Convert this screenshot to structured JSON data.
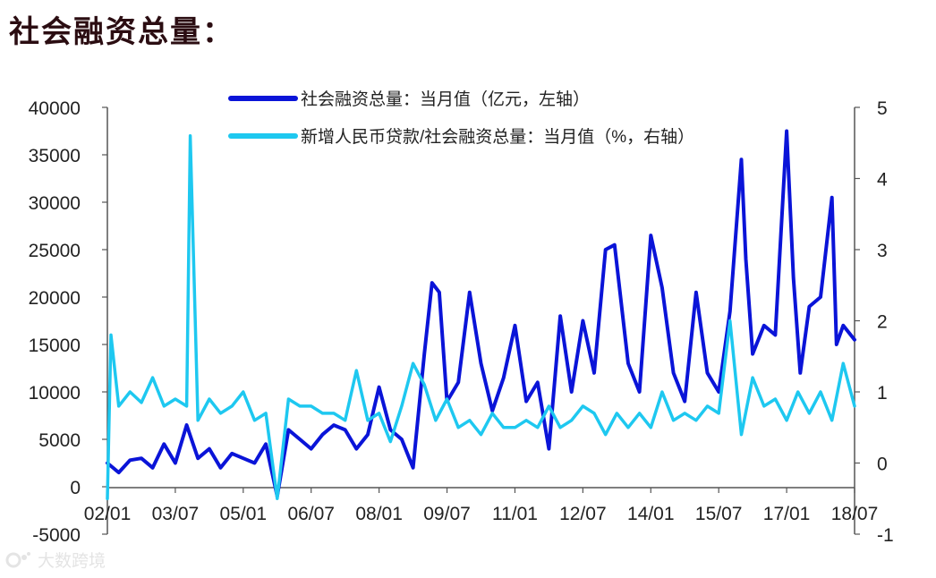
{
  "heading": "社会融资总量：",
  "watermark": "大数跨境",
  "colors": {
    "primary": "#0a14d8",
    "secondary": "#1ec8f0",
    "text": "#222222"
  },
  "chart_data": {
    "type": "line",
    "x_ticks": [
      "02/01",
      "03/07",
      "05/01",
      "06/07",
      "08/01",
      "09/07",
      "11/01",
      "12/07",
      "14/01",
      "15/07",
      "17/01",
      "18/07"
    ],
    "x_range": [
      2002.0,
      2018.5
    ],
    "y_left": {
      "range": [
        -5000,
        40000
      ],
      "ticks": [
        "-5000",
        "0",
        "5000",
        "10000",
        "15000",
        "20000",
        "25000",
        "30000",
        "35000",
        "40000"
      ]
    },
    "y_right": {
      "range": [
        -1,
        5
      ],
      "ticks": [
        "-1",
        "0",
        "1",
        "2",
        "3",
        "4",
        "5"
      ]
    },
    "legend_position": "top",
    "series": [
      {
        "name": "社会融资总量：当月值（亿元，左轴）",
        "axis": "left",
        "color": "#0a14d8",
        "x": [
          2002.0,
          2002.25,
          2002.5,
          2002.75,
          2003.0,
          2003.25,
          2003.5,
          2003.75,
          2004.0,
          2004.25,
          2004.5,
          2004.75,
          2005.0,
          2005.25,
          2005.5,
          2005.75,
          2006.0,
          2006.25,
          2006.5,
          2006.75,
          2007.0,
          2007.25,
          2007.5,
          2007.75,
          2008.0,
          2008.25,
          2008.5,
          2008.75,
          2009.0,
          2009.17,
          2009.33,
          2009.5,
          2009.75,
          2010.0,
          2010.25,
          2010.5,
          2010.75,
          2011.0,
          2011.25,
          2011.5,
          2011.75,
          2012.0,
          2012.25,
          2012.5,
          2012.75,
          2013.0,
          2013.2,
          2013.5,
          2013.75,
          2014.0,
          2014.25,
          2014.5,
          2014.75,
          2015.0,
          2015.25,
          2015.5,
          2015.75,
          2016.0,
          2016.1,
          2016.25,
          2016.5,
          2016.75,
          2017.0,
          2017.15,
          2017.3,
          2017.5,
          2017.75,
          2018.0,
          2018.1,
          2018.25,
          2018.5
        ],
        "y": [
          2500,
          1500,
          2800,
          3000,
          2000,
          4500,
          2500,
          6500,
          3000,
          4000,
          2000,
          3500,
          3000,
          2500,
          4500,
          -1000,
          6000,
          5000,
          4000,
          5500,
          6500,
          6000,
          4000,
          5500,
          10500,
          6000,
          5000,
          2000,
          14000,
          21500,
          20500,
          9000,
          11000,
          20500,
          13000,
          8000,
          11500,
          17000,
          9000,
          11000,
          4000,
          18000,
          10000,
          17500,
          12000,
          25000,
          25500,
          13000,
          10000,
          26500,
          21000,
          12000,
          9000,
          20500,
          12000,
          10000,
          18500,
          34500,
          24000,
          14000,
          17000,
          16000,
          37500,
          22000,
          12000,
          19000,
          20000,
          30500,
          15000,
          17000,
          15500
        ]
      },
      {
        "name": "新增人民币贷款/社会融资总量：当月值（%，右轴）",
        "axis": "right",
        "color": "#1ec8f0",
        "x": [
          2002.0,
          2002.08,
          2002.25,
          2002.5,
          2002.75,
          2003.0,
          2003.25,
          2003.5,
          2003.75,
          2003.83,
          2004.0,
          2004.25,
          2004.5,
          2004.75,
          2005.0,
          2005.25,
          2005.5,
          2005.75,
          2006.0,
          2006.25,
          2006.5,
          2006.75,
          2007.0,
          2007.25,
          2007.5,
          2007.75,
          2008.0,
          2008.25,
          2008.5,
          2008.75,
          2009.0,
          2009.25,
          2009.5,
          2009.75,
          2010.0,
          2010.25,
          2010.5,
          2010.75,
          2011.0,
          2011.25,
          2011.5,
          2011.75,
          2012.0,
          2012.25,
          2012.5,
          2012.75,
          2013.0,
          2013.25,
          2013.5,
          2013.75,
          2014.0,
          2014.25,
          2014.5,
          2014.75,
          2015.0,
          2015.25,
          2015.5,
          2015.75,
          2016.0,
          2016.25,
          2016.5,
          2016.75,
          2017.0,
          2017.25,
          2017.5,
          2017.75,
          2018.0,
          2018.25,
          2018.5
        ],
        "y": [
          -0.5,
          1.8,
          0.8,
          1.0,
          0.85,
          1.2,
          0.8,
          0.9,
          0.8,
          4.6,
          0.6,
          0.9,
          0.7,
          0.8,
          1.0,
          0.6,
          0.7,
          -0.5,
          0.9,
          0.8,
          0.8,
          0.7,
          0.7,
          0.6,
          1.3,
          0.6,
          0.7,
          0.3,
          0.8,
          1.4,
          1.1,
          0.6,
          0.9,
          0.5,
          0.6,
          0.4,
          0.7,
          0.5,
          0.5,
          0.6,
          0.5,
          0.8,
          0.5,
          0.6,
          0.8,
          0.7,
          0.4,
          0.7,
          0.5,
          0.7,
          0.5,
          1.0,
          0.6,
          0.7,
          0.6,
          0.8,
          0.7,
          2.0,
          0.4,
          1.2,
          0.8,
          0.9,
          0.6,
          1.0,
          0.7,
          1.0,
          0.6,
          1.4,
          0.8
        ]
      }
    ]
  }
}
